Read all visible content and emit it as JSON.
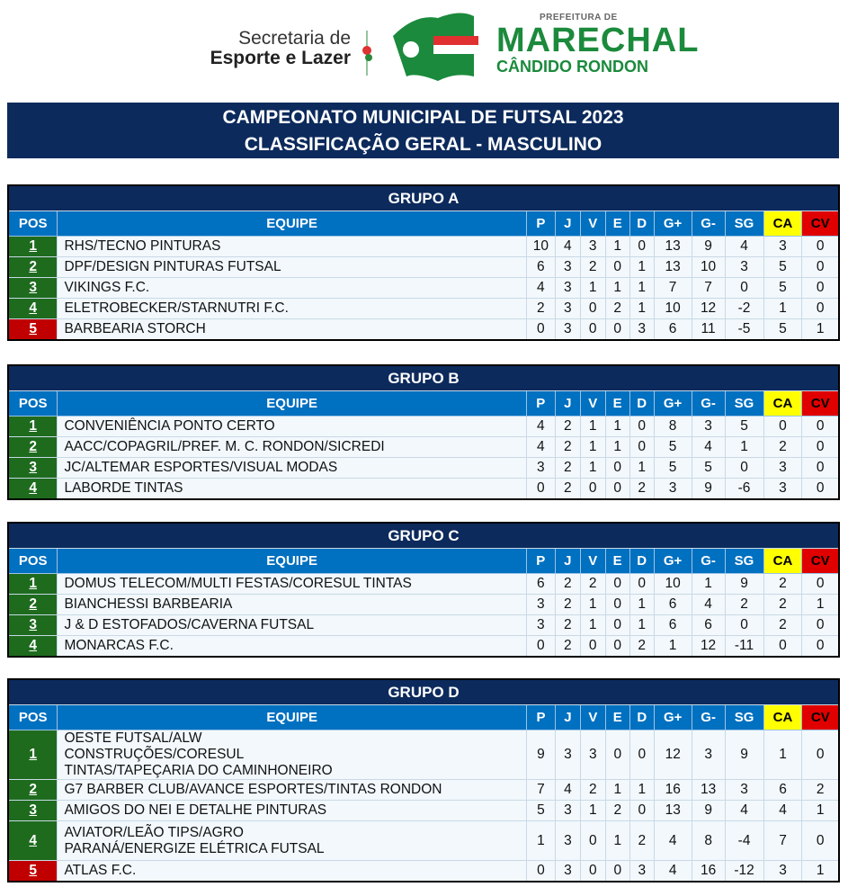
{
  "header": {
    "secretaria_line1": "Secretaria de",
    "secretaria_line2": "Esporte e Lazer",
    "prefeitura": "PREFEITURA DE",
    "marechal": "MARECHAL",
    "candido": "CÂNDIDO RONDON"
  },
  "title": {
    "line1": "CAMPEONATO MUNICIPAL DE FUTSAL 2023",
    "line2": "CLASSIFICAÇÃO GERAL - MASCULINO"
  },
  "columns": [
    "POS",
    "EQUIPE",
    "P",
    "J",
    "V",
    "E",
    "D",
    "G+",
    "G-",
    "SG",
    "CA",
    "CV"
  ],
  "colors": {
    "navy": "#0c2a5c",
    "header_blue": "#0070c0",
    "qualified": "#1e6b1e",
    "eliminated": "#c00000",
    "ca": "#ffff00",
    "cv": "#e00000"
  },
  "groups": [
    {
      "name": "GRUPO A",
      "rows": [
        {
          "pos": "1",
          "team": "RHS/TECNO PINTURAS",
          "stats": [
            "10",
            "4",
            "3",
            "1",
            "0",
            "13",
            "9",
            "4",
            "3",
            "0"
          ],
          "status": "qualified"
        },
        {
          "pos": "2",
          "team": "DPF/DESIGN PINTURAS FUTSAL",
          "stats": [
            "6",
            "3",
            "2",
            "0",
            "1",
            "13",
            "10",
            "3",
            "5",
            "0"
          ],
          "status": "qualified"
        },
        {
          "pos": "3",
          "team": "VIKINGS F.C.",
          "stats": [
            "4",
            "3",
            "1",
            "1",
            "1",
            "7",
            "7",
            "0",
            "5",
            "0"
          ],
          "status": "qualified"
        },
        {
          "pos": "4",
          "team": "ELETROBECKER/STARNUTRI F.C.",
          "stats": [
            "2",
            "3",
            "0",
            "2",
            "1",
            "10",
            "12",
            "-2",
            "1",
            "0"
          ],
          "status": "qualified"
        },
        {
          "pos": "5",
          "team": "BARBEARIA STORCH",
          "stats": [
            "0",
            "3",
            "0",
            "0",
            "3",
            "6",
            "11",
            "-5",
            "5",
            "1"
          ],
          "status": "eliminated"
        }
      ]
    },
    {
      "name": "GRUPO B",
      "rows": [
        {
          "pos": "1",
          "team": "CONVENIÊNCIA PONTO CERTO",
          "stats": [
            "4",
            "2",
            "1",
            "1",
            "0",
            "8",
            "3",
            "5",
            "0",
            "0"
          ],
          "status": "qualified"
        },
        {
          "pos": "2",
          "team": "AACC/COPAGRIL/PREF. M. C. RONDON/SICREDI",
          "stats": [
            "4",
            "2",
            "1",
            "1",
            "0",
            "5",
            "4",
            "1",
            "2",
            "0"
          ],
          "status": "qualified"
        },
        {
          "pos": "3",
          "team": "JC/ALTEMAR ESPORTES/VISUAL MODAS",
          "stats": [
            "3",
            "2",
            "1",
            "0",
            "1",
            "5",
            "5",
            "0",
            "3",
            "0"
          ],
          "status": "qualified"
        },
        {
          "pos": "4",
          "team": "LABORDE TINTAS",
          "stats": [
            "0",
            "2",
            "0",
            "0",
            "2",
            "3",
            "9",
            "-6",
            "3",
            "0"
          ],
          "status": "qualified"
        }
      ]
    },
    {
      "name": "GRUPO C",
      "rows": [
        {
          "pos": "1",
          "team": "DOMUS TELECOM/MULTI FESTAS/CORESUL TINTAS",
          "stats": [
            "6",
            "2",
            "2",
            "0",
            "0",
            "10",
            "1",
            "9",
            "2",
            "0"
          ],
          "status": "qualified"
        },
        {
          "pos": "2",
          "team": "BIANCHESSI BARBEARIA",
          "stats": [
            "3",
            "2",
            "1",
            "0",
            "1",
            "6",
            "4",
            "2",
            "2",
            "1"
          ],
          "status": "qualified"
        },
        {
          "pos": "3",
          "team": "J & D ESTOFADOS/CAVERNA FUTSAL",
          "stats": [
            "3",
            "2",
            "1",
            "0",
            "1",
            "6",
            "6",
            "0",
            "2",
            "0"
          ],
          "status": "qualified"
        },
        {
          "pos": "4",
          "team": "MONARCAS F.C.",
          "stats": [
            "0",
            "2",
            "0",
            "0",
            "2",
            "1",
            "12",
            "-11",
            "0",
            "0"
          ],
          "status": "qualified"
        }
      ]
    },
    {
      "name": "GRUPO D",
      "rows": [
        {
          "pos": "1",
          "team": "OESTE FUTSAL/ALW CONSTRUÇÕES/CORESUL TINTAS/TAPEÇARIA DO CAMINHONEIRO",
          "stats": [
            "9",
            "3",
            "3",
            "0",
            "0",
            "12",
            "3",
            "9",
            "1",
            "0"
          ],
          "status": "qualified"
        },
        {
          "pos": "2",
          "team": "G7 BARBER CLUB/AVANCE ESPORTES/TINTAS RONDON",
          "stats": [
            "7",
            "4",
            "2",
            "1",
            "1",
            "16",
            "13",
            "3",
            "6",
            "2"
          ],
          "status": "qualified"
        },
        {
          "pos": "3",
          "team": "AMIGOS DO NEI E DETALHE PINTURAS",
          "stats": [
            "5",
            "3",
            "1",
            "2",
            "0",
            "13",
            "9",
            "4",
            "4",
            "1"
          ],
          "status": "qualified"
        },
        {
          "pos": "4",
          "team": "AVIATOR/LEÃO TIPS/AGRO PARANÁ/ENERGIZE ELÉTRICA FUTSAL",
          "stats": [
            "1",
            "3",
            "0",
            "1",
            "2",
            "4",
            "8",
            "-4",
            "7",
            "0"
          ],
          "status": "qualified"
        },
        {
          "pos": "5",
          "team": "ATLAS F.C.",
          "stats": [
            "0",
            "3",
            "0",
            "0",
            "3",
            "4",
            "16",
            "-12",
            "3",
            "1"
          ],
          "status": "eliminated"
        }
      ]
    }
  ]
}
